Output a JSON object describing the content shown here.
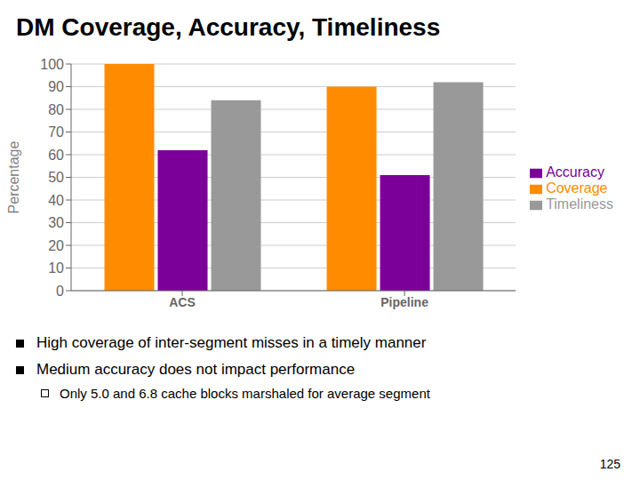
{
  "chart_data": {
    "type": "bar",
    "title": "DM Coverage, Accuracy, Timeliness",
    "categories": [
      "ACS",
      "Pipeline"
    ],
    "series": [
      {
        "name": "Coverage",
        "color": "#FF8C00",
        "values": [
          100,
          90
        ]
      },
      {
        "name": "Accuracy",
        "color": "#7B0099",
        "values": [
          62,
          51
        ]
      },
      {
        "name": "Timeliness",
        "color": "#999999",
        "values": [
          84,
          92
        ]
      }
    ],
    "ylabel": "Percentage",
    "ylim": [
      0,
      100
    ],
    "yticks": [
      0,
      10,
      20,
      30,
      40,
      50,
      60,
      70,
      80,
      90,
      100
    ],
    "grid": true,
    "legend": "right",
    "annotations": [
      {
        "text": "High coverage of inter-segment misses in a timely manner",
        "items": []
      },
      {
        "text": "Medium accuracy does not impact performance",
        "items": [
          "Only 5.0 and 6.8 cache blocks marshaled for average segment"
        ]
      }
    ],
    "page_number": "125"
  }
}
